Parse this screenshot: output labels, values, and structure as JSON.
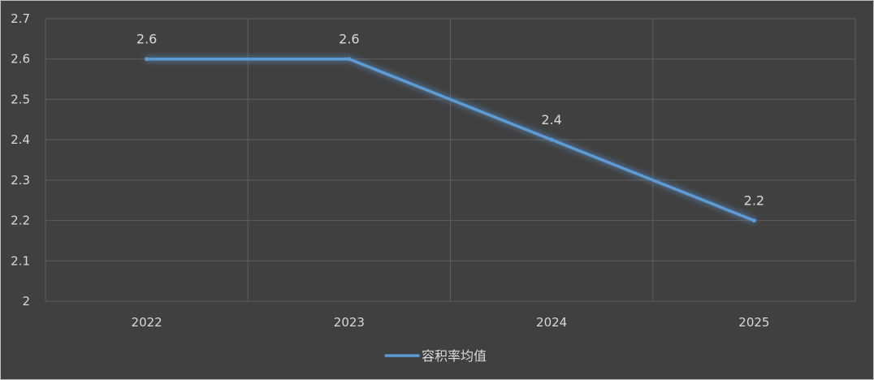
{
  "chart_data": {
    "type": "line",
    "title": "",
    "xlabel": "",
    "ylabel": "",
    "categories": [
      "2022",
      "2023",
      "2024",
      "2025"
    ],
    "series": [
      {
        "name": "容积率均值",
        "values": [
          2.6,
          2.6,
          2.4,
          2.2
        ],
        "data_labels": [
          "2.6",
          "2.6",
          "2.4",
          "2.2"
        ]
      }
    ],
    "ylim": [
      2,
      2.7
    ],
    "y_ticks": [
      "2",
      "2.1",
      "2.2",
      "2.3",
      "2.4",
      "2.5",
      "2.6",
      "2.7"
    ],
    "grid": true,
    "legend_position": "bottom",
    "colors": {
      "background": "#404040",
      "line": "#5b9bd5",
      "grid": "#5e5e5e",
      "text": "#d9d9d9",
      "border": "#bfbfbf"
    }
  }
}
